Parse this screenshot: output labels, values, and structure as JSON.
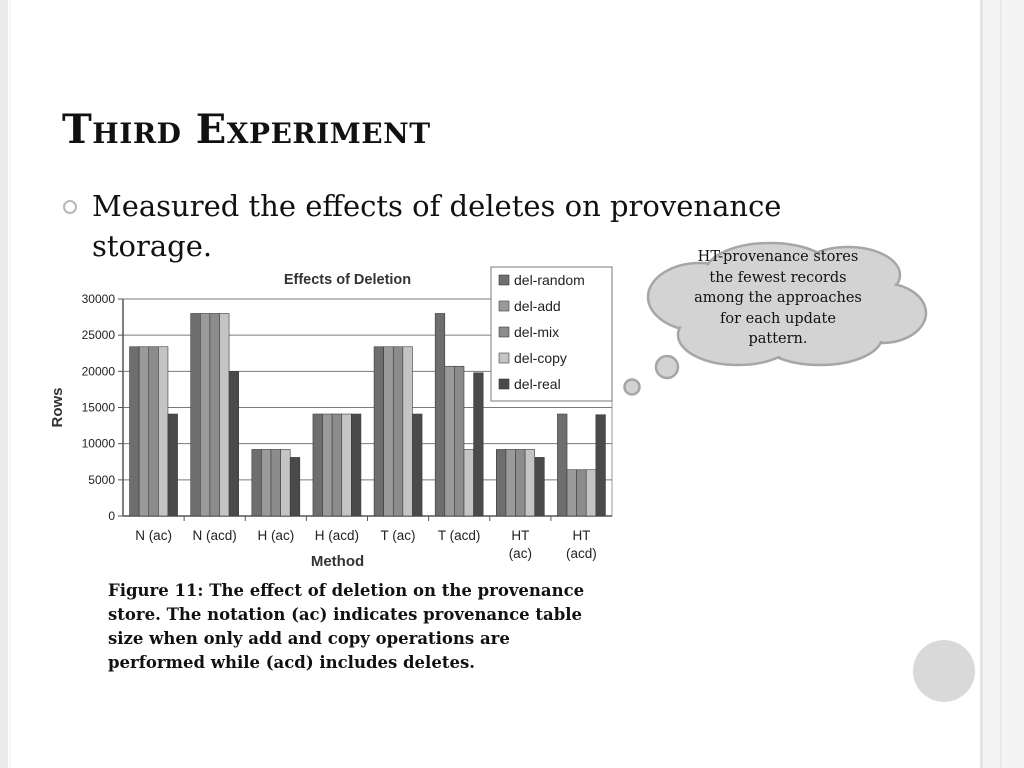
{
  "slide": {
    "title": "Third Experiment",
    "bullet": "Measured the effects of deletes on provenance storage.",
    "caption": "Figure 11: The effect of deletion on the provenance store. The notation (ac) indicates provenance table size when only add and copy operations are performed while (acd) includes deletes.",
    "callout": "HT-provenance stores the fewest records among the approaches for each update pattern."
  },
  "chart_data": {
    "type": "bar",
    "title": "Effects of Deletion",
    "xlabel": "Method",
    "ylabel": "Rows",
    "ylim": [
      0,
      30000
    ],
    "yticks": [
      0,
      5000,
      10000,
      15000,
      20000,
      25000,
      30000
    ],
    "grid": true,
    "legend_position": "top-right",
    "categories": [
      [
        "N (ac)"
      ],
      [
        "N (acd)"
      ],
      [
        "H (ac)"
      ],
      [
        "H (acd)"
      ],
      [
        "T (ac)"
      ],
      [
        "T (acd)"
      ],
      [
        "HT",
        "(ac)"
      ],
      [
        "HT",
        "(acd)"
      ]
    ],
    "series": [
      {
        "name": "del-random",
        "color": "#6e6e6e",
        "values": [
          23400,
          28000,
          9200,
          14100,
          23400,
          28000,
          9200,
          14100
        ]
      },
      {
        "name": "del-add",
        "color": "#9a9a9a",
        "values": [
          23400,
          28000,
          9200,
          14100,
          23400,
          20700,
          9200,
          6400
        ]
      },
      {
        "name": "del-mix",
        "color": "#8c8c8c",
        "values": [
          23400,
          28000,
          9200,
          14100,
          23400,
          20700,
          9200,
          6400
        ]
      },
      {
        "name": "del-copy",
        "color": "#c4c4c4",
        "values": [
          23400,
          28000,
          9200,
          14100,
          23400,
          9200,
          9200,
          6400
        ]
      },
      {
        "name": "del-real",
        "color": "#4a4a4a",
        "values": [
          14100,
          20000,
          8100,
          14100,
          14100,
          19800,
          8100,
          14000
        ]
      }
    ]
  }
}
